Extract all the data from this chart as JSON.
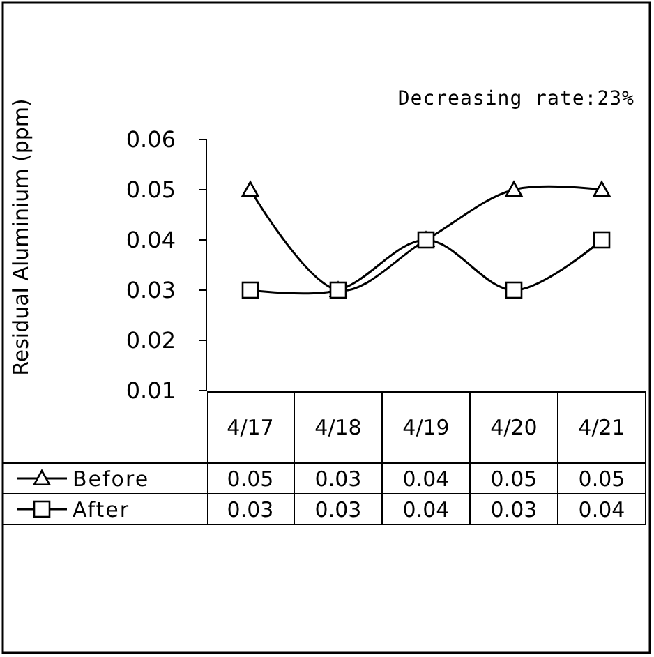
{
  "chart_data": {
    "type": "line",
    "ylabel": "Residual Aluminium (ppm)",
    "annotations": [
      "Decreasing rate:23%"
    ],
    "categories": [
      "4/17",
      "4/18",
      "4/19",
      "4/20",
      "4/21"
    ],
    "ylim": [
      0.01,
      0.06
    ],
    "yticks": [
      {
        "value": 0.01,
        "label": "0.01"
      },
      {
        "value": 0.02,
        "label": "0.02"
      },
      {
        "value": 0.03,
        "label": "0.03"
      },
      {
        "value": 0.04,
        "label": "0.04"
      },
      {
        "value": 0.05,
        "label": "0.05"
      },
      {
        "value": 0.06,
        "label": "0.06"
      }
    ],
    "series": [
      {
        "name": "Before",
        "color": "#000000",
        "marker": "triangle",
        "values": [
          0.05,
          0.03,
          0.04,
          0.05,
          0.05
        ]
      },
      {
        "name": "After",
        "color": "#000000",
        "marker": "square",
        "values": [
          0.03,
          0.03,
          0.04,
          0.03,
          0.04
        ]
      }
    ],
    "data_labels": true,
    "grid": false,
    "legend": "bottom left"
  }
}
